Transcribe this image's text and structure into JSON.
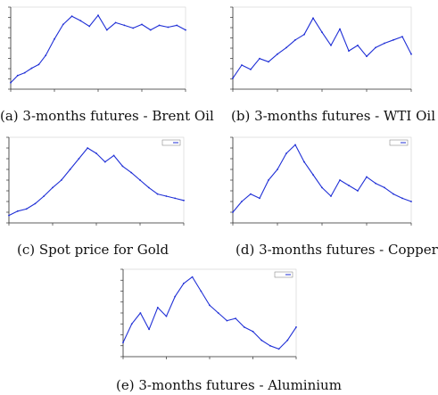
{
  "colors": {
    "series": "#1f2fd6",
    "axis": "#333333",
    "caption": "#111111"
  },
  "chart_data": [
    {
      "type": "line",
      "caption": "(a) 3-months futures - Brent Oil",
      "grid": false,
      "x": [
        0,
        4,
        8,
        12,
        16,
        20,
        25,
        30,
        35,
        40,
        45,
        50,
        55,
        60,
        65,
        70,
        75,
        80,
        85,
        90,
        95,
        100
      ],
      "series": [
        {
          "values": [
            22,
            30,
            33,
            38,
            42,
            52,
            70,
            86,
            95,
            90,
            84,
            96,
            80,
            88,
            85,
            82,
            86,
            80,
            85,
            83,
            85,
            80
          ]
        }
      ],
      "ylim": [
        15,
        105
      ]
    },
    {
      "type": "line",
      "caption": "(b) 3-months futures - WTI Oil",
      "grid": false,
      "x": [
        0,
        5,
        10,
        15,
        20,
        25,
        30,
        35,
        40,
        45,
        50,
        55,
        60,
        65,
        70,
        75,
        80,
        85,
        90,
        95,
        100
      ],
      "series": [
        {
          "values": [
            40,
            52,
            48,
            58,
            55,
            62,
            68,
            75,
            80,
            95,
            82,
            70,
            85,
            65,
            70,
            60,
            68,
            72,
            75,
            78,
            62
          ]
        }
      ],
      "ylim": [
        30,
        105
      ]
    },
    {
      "type": "line",
      "caption": "(c) Spot price for Gold",
      "grid": false,
      "legend": "top-right",
      "x": [
        0,
        5,
        10,
        15,
        20,
        25,
        30,
        35,
        40,
        45,
        50,
        55,
        60,
        65,
        70,
        75,
        80,
        85,
        90,
        95,
        100
      ],
      "series": [
        {
          "values": [
            22,
            26,
            28,
            33,
            40,
            48,
            55,
            65,
            75,
            85,
            80,
            72,
            78,
            68,
            62,
            55,
            48,
            42,
            40,
            38,
            36
          ]
        }
      ],
      "ylim": [
        15,
        95
      ]
    },
    {
      "type": "line",
      "caption": "(d) 3-months futures - Copper",
      "grid": false,
      "legend": "top-right",
      "x": [
        0,
        5,
        10,
        15,
        20,
        25,
        30,
        35,
        40,
        45,
        50,
        55,
        60,
        65,
        70,
        75,
        80,
        85,
        90,
        95,
        100
      ],
      "series": [
        {
          "values": [
            25,
            35,
            42,
            38,
            55,
            65,
            80,
            88,
            72,
            60,
            48,
            40,
            55,
            50,
            45,
            58,
            52,
            48,
            42,
            38,
            35
          ]
        }
      ],
      "ylim": [
        15,
        95
      ]
    },
    {
      "type": "line",
      "caption": "(e) 3-months futures - Aluminium",
      "grid": false,
      "legend": "top-right",
      "x": [
        0,
        5,
        10,
        15,
        20,
        25,
        30,
        35,
        40,
        45,
        50,
        55,
        60,
        65,
        70,
        75,
        80,
        85,
        90,
        95,
        100
      ],
      "series": [
        {
          "values": [
            28,
            45,
            55,
            40,
            60,
            52,
            70,
            82,
            88,
            75,
            62,
            55,
            48,
            50,
            42,
            38,
            30,
            25,
            22,
            30,
            42
          ]
        }
      ],
      "ylim": [
        15,
        95
      ]
    }
  ]
}
